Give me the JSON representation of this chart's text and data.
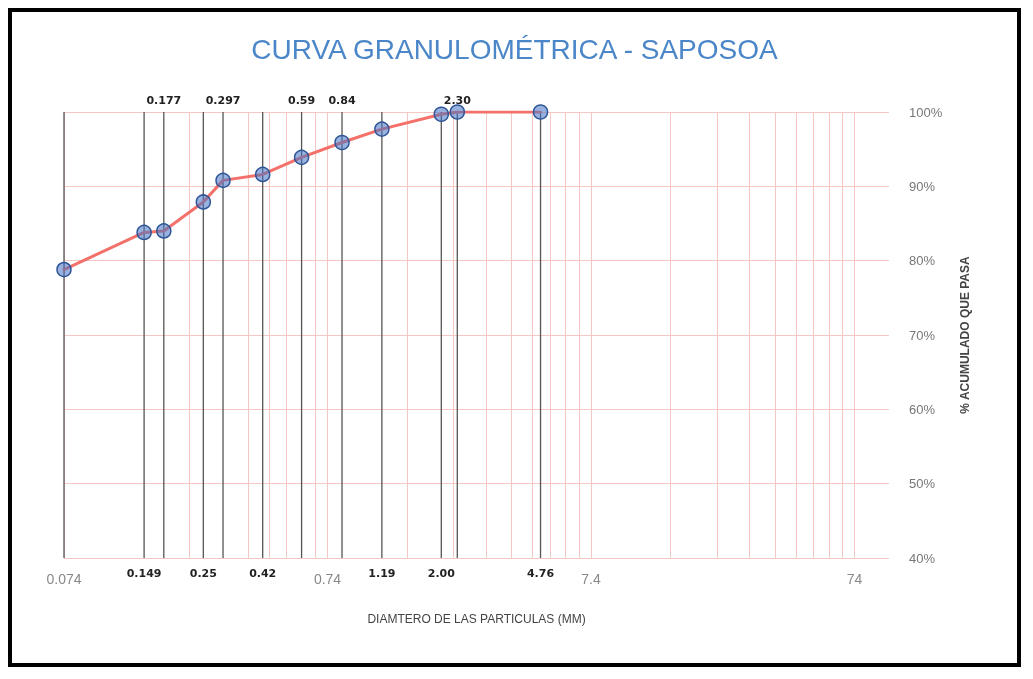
{
  "chart_data": {
    "type": "line",
    "title": "CURVA GRANULOMÉTRICA - SAPOSOA",
    "xlabel": "DIAMTERO DE LAS PARTICULAS (MM)",
    "ylabel": "% ACUMULADO QUE PASA",
    "x": [
      0.074,
      0.149,
      0.177,
      0.25,
      0.297,
      0.42,
      0.59,
      0.84,
      1.19,
      2.0,
      2.3,
      4.76
    ],
    "series": [
      {
        "color": "#f4716b",
        "values": [
          78.8,
          83.8,
          84.0,
          87.9,
          90.8,
          91.6,
          93.9,
          95.9,
          97.7,
          99.7,
          100,
          100
        ]
      }
    ],
    "log": "x",
    "xlim": [
      0.074,
      100
    ],
    "xticks": [
      0.074,
      {
        "value": 0.222,
        "label": null
      },
      {
        "value": 0.37,
        "label": null
      },
      {
        "value": 0.444,
        "label": null
      },
      {
        "value": 0.518,
        "label": null
      },
      {
        "value": 0.666,
        "label": null
      },
      0.74,
      {
        "value": 1.48,
        "label": null
      },
      {
        "value": 2.22,
        "label": null
      },
      {
        "value": 2.96,
        "label": null
      },
      {
        "value": 3.7,
        "label": null
      },
      {
        "value": 4.44,
        "label": null
      },
      {
        "value": 5.18,
        "label": null
      },
      {
        "value": 5.92,
        "label": null
      },
      {
        "value": 6.66,
        "label": null
      },
      7.4,
      {
        "value": 14.8,
        "label": null
      },
      {
        "value": 22.2,
        "label": null
      },
      {
        "value": 29.6,
        "label": null
      },
      {
        "value": 37,
        "label": null
      },
      {
        "value": 44.4,
        "label": null
      },
      {
        "value": 51.8,
        "label": null
      },
      {
        "value": 59.2,
        "label": null
      },
      {
        "value": 66.6,
        "label": null
      },
      74
    ],
    "ylim": [
      40,
      100
    ],
    "yticks": [
      {
        "value": 40,
        "label": "40%"
      },
      {
        "value": 50,
        "label": "50%"
      },
      {
        "value": 60,
        "label": "60%"
      },
      {
        "value": 70,
        "label": "70%"
      },
      {
        "value": 80,
        "label": "80%"
      },
      {
        "value": 90,
        "label": "90%"
      },
      {
        "value": 100,
        "label": "100%"
      }
    ],
    "grid": true,
    "marker": "circle",
    "line_style": "solid",
    "ref_lines": [
      {
        "axis": "x",
        "value": 0.074,
        "label": null,
        "color": "#555555"
      },
      {
        "axis": "x",
        "value": 0.149,
        "label": "0.149",
        "color": "#555555"
      },
      {
        "axis": "x",
        "value": 0.177,
        "label": "0.177",
        "color": "#555555"
      },
      {
        "axis": "x",
        "value": 0.25,
        "label": "0.25",
        "color": "#555555"
      },
      {
        "axis": "x",
        "value": 0.297,
        "label": "0.297",
        "color": "#555555"
      },
      {
        "axis": "x",
        "value": 0.42,
        "label": "0.42",
        "color": "#555555"
      },
      {
        "axis": "x",
        "value": 0.59,
        "label": "0.59",
        "color": "#555555"
      },
      {
        "axis": "x",
        "value": 0.84,
        "label": "0.84",
        "color": "#555555"
      },
      {
        "axis": "x",
        "value": 1.19,
        "label": "1.19",
        "color": "#555555"
      },
      {
        "axis": "x",
        "value": 2.0,
        "label": "2.00",
        "color": "#555555"
      },
      {
        "axis": "x",
        "value": 2.3,
        "label": "2.30",
        "color": "#555555"
      },
      {
        "axis": "x",
        "value": 4.76,
        "label": "4.76",
        "color": "#555555"
      }
    ]
  }
}
